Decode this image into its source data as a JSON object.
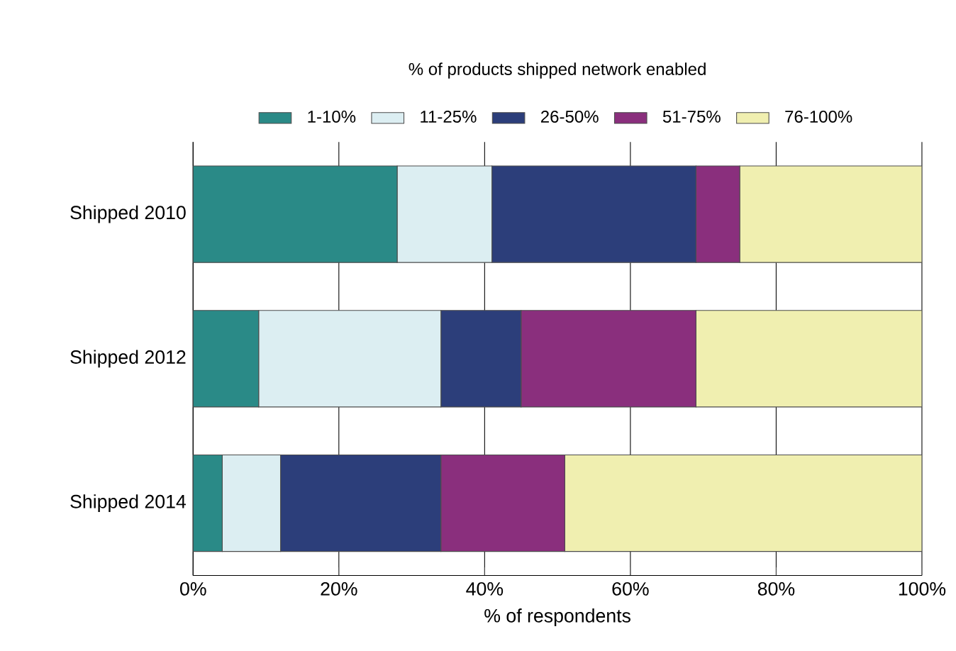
{
  "chart_data": {
    "type": "bar",
    "orientation": "horizontal",
    "stacked": true,
    "legend_title": "% of products shipped network enabled",
    "xlabel": "% of respondents",
    "categories": [
      "Shipped 2010",
      "Shipped 2012",
      "Shipped 2014"
    ],
    "series": [
      {
        "name": "1-10%",
        "color": "#2a8a87",
        "values": [
          28,
          9,
          4
        ]
      },
      {
        "name": "11-25%",
        "color": "#dceef2",
        "values": [
          13,
          25,
          8
        ]
      },
      {
        "name": "26-50%",
        "color": "#2c3e7a",
        "values": [
          28,
          11,
          22
        ]
      },
      {
        "name": "51-75%",
        "color": "#8a2f7d",
        "values": [
          6,
          24,
          17
        ]
      },
      {
        "name": "76-100%",
        "color": "#f0efb0",
        "values": [
          25,
          31,
          49
        ]
      }
    ],
    "xlim": [
      0,
      100
    ],
    "xticks": [
      {
        "value": 0,
        "label": "0%"
      },
      {
        "value": 20,
        "label": "20%"
      },
      {
        "value": 40,
        "label": "40%"
      },
      {
        "value": 60,
        "label": "60%"
      },
      {
        "value": 80,
        "label": "80%"
      },
      {
        "value": 100,
        "label": "100%"
      }
    ],
    "grid": "x",
    "legend": "top"
  }
}
